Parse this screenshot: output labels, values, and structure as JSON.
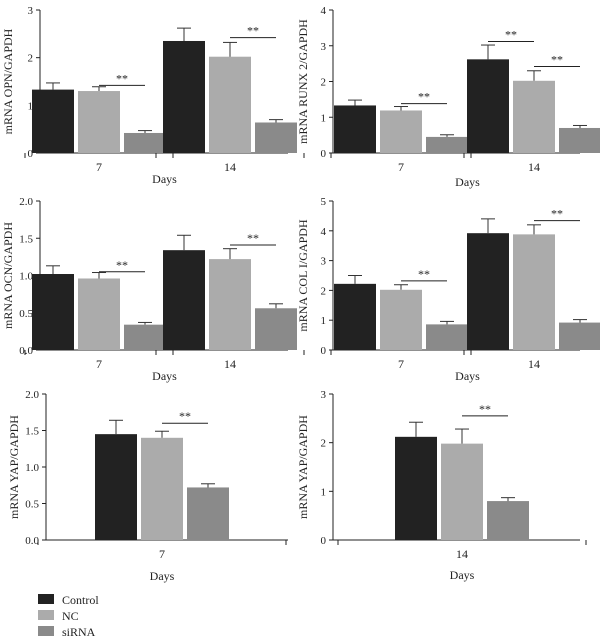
{
  "colors": {
    "Control": "#222222",
    "NC": "#ababab",
    "siRNA": "#8a8a8a"
  },
  "legend": [
    "Control",
    "NC",
    "siRNA"
  ],
  "chart_data": [
    {
      "type": "bar",
      "ylabel": "mRNA OPN/GAPDH",
      "xlabel": "Days",
      "categories": [
        "7",
        "14"
      ],
      "series": [
        {
          "name": "Control",
          "values": [
            1.33,
            2.35
          ],
          "errors": [
            0.14,
            0.27
          ]
        },
        {
          "name": "NC",
          "values": [
            1.3,
            2.02
          ],
          "errors": [
            0.09,
            0.3
          ]
        },
        {
          "name": "siRNA",
          "values": [
            0.42,
            0.64
          ],
          "errors": [
            0.05,
            0.06
          ]
        }
      ],
      "ylim": [
        0,
        3
      ],
      "yticks": [
        0,
        1,
        2,
        3
      ],
      "significance": [
        {
          "category": 0,
          "from": 1,
          "to": 2,
          "value": 1.42,
          "label": "**"
        },
        {
          "category": 1,
          "from": 1,
          "to": 2,
          "value": 2.42,
          "label": "**"
        }
      ]
    },
    {
      "type": "bar",
      "ylabel": "mRNA RUNX 2/GAPDH",
      "xlabel": "Days",
      "categories": [
        "7",
        "14"
      ],
      "series": [
        {
          "name": "Control",
          "values": [
            1.33,
            2.62
          ],
          "errors": [
            0.15,
            0.4
          ]
        },
        {
          "name": "NC",
          "values": [
            1.19,
            2.02
          ],
          "errors": [
            0.11,
            0.28
          ]
        },
        {
          "name": "siRNA",
          "values": [
            0.45,
            0.7
          ],
          "errors": [
            0.06,
            0.07
          ]
        }
      ],
      "ylim": [
        0,
        4
      ],
      "yticks": [
        0,
        1,
        2,
        3,
        4
      ],
      "significance": [
        {
          "category": 0,
          "from": 1,
          "to": 2,
          "value": 1.38,
          "label": "**"
        },
        {
          "category": 1,
          "from": 0,
          "to": 1,
          "value": 3.12,
          "label": "**"
        },
        {
          "category": 1,
          "from": 1,
          "to": 2,
          "value": 2.42,
          "label": "**"
        }
      ]
    },
    {
      "type": "bar",
      "ylabel": "mRNA OCN/GAPDH",
      "xlabel": "Days",
      "categories": [
        "7",
        "14"
      ],
      "series": [
        {
          "name": "Control",
          "values": [
            1.02,
            1.34
          ],
          "errors": [
            0.11,
            0.2
          ]
        },
        {
          "name": "NC",
          "values": [
            0.96,
            1.22
          ],
          "errors": [
            0.08,
            0.14
          ]
        },
        {
          "name": "siRNA",
          "values": [
            0.34,
            0.56
          ],
          "errors": [
            0.03,
            0.06
          ]
        }
      ],
      "ylim": [
        0,
        2
      ],
      "yticks": [
        0,
        0.5,
        1.0,
        1.5,
        2.0
      ],
      "significance": [
        {
          "category": 0,
          "from": 1,
          "to": 2,
          "value": 1.05,
          "label": "**"
        },
        {
          "category": 1,
          "from": 1,
          "to": 2,
          "value": 1.41,
          "label": "**"
        }
      ]
    },
    {
      "type": "bar",
      "ylabel": "mRNA COL I/GAPDH",
      "xlabel": "Days",
      "categories": [
        "7",
        "14"
      ],
      "series": [
        {
          "name": "Control",
          "values": [
            2.22,
            3.92
          ],
          "errors": [
            0.28,
            0.48
          ]
        },
        {
          "name": "NC",
          "values": [
            2.02,
            3.88
          ],
          "errors": [
            0.17,
            0.32
          ]
        },
        {
          "name": "siRNA",
          "values": [
            0.86,
            0.92
          ],
          "errors": [
            0.1,
            0.1
          ]
        }
      ],
      "ylim": [
        0,
        5
      ],
      "yticks": [
        0,
        1,
        2,
        3,
        4,
        5
      ],
      "significance": [
        {
          "category": 0,
          "from": 1,
          "to": 2,
          "value": 2.32,
          "label": "**"
        },
        {
          "category": 1,
          "from": 1,
          "to": 2,
          "value": 4.34,
          "label": "**"
        }
      ]
    },
    {
      "type": "bar",
      "ylabel": "mRNA YAP/GAPDH",
      "xlabel": "Days",
      "categories": [
        "7"
      ],
      "series": [
        {
          "name": "Control",
          "values": [
            1.45
          ],
          "errors": [
            0.19
          ]
        },
        {
          "name": "NC",
          "values": [
            1.4
          ],
          "errors": [
            0.09
          ]
        },
        {
          "name": "siRNA",
          "values": [
            0.72
          ],
          "errors": [
            0.05
          ]
        }
      ],
      "ylim": [
        0,
        2
      ],
      "yticks": [
        0,
        0.5,
        1.0,
        1.5,
        2.0
      ],
      "significance": [
        {
          "category": 0,
          "from": 1,
          "to": 2,
          "value": 1.6,
          "label": "**"
        }
      ]
    },
    {
      "type": "bar",
      "ylabel": "mRNA YAP/GAPDH",
      "xlabel": "Days",
      "categories": [
        "14"
      ],
      "series": [
        {
          "name": "Control",
          "values": [
            2.12
          ],
          "errors": [
            0.3
          ]
        },
        {
          "name": "NC",
          "values": [
            1.98
          ],
          "errors": [
            0.3
          ]
        },
        {
          "name": "siRNA",
          "values": [
            0.8
          ],
          "errors": [
            0.07
          ]
        }
      ],
      "ylim": [
        0,
        3
      ],
      "yticks": [
        0,
        1,
        2,
        3
      ],
      "significance": [
        {
          "category": 0,
          "from": 1,
          "to": 2,
          "value": 2.55,
          "label": "**"
        }
      ]
    }
  ]
}
